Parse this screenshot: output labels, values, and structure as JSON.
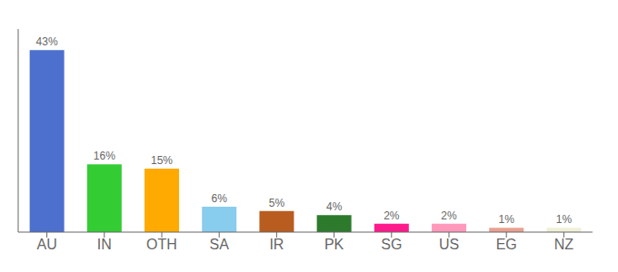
{
  "chart_data": {
    "type": "bar",
    "categories": [
      "AU",
      "IN",
      "OTH",
      "SA",
      "IR",
      "PK",
      "SG",
      "US",
      "EG",
      "NZ"
    ],
    "values": [
      43,
      16,
      15,
      6,
      5,
      4,
      2,
      2,
      1,
      1
    ],
    "value_labels": [
      "43%",
      "16%",
      "15%",
      "6%",
      "5%",
      "4%",
      "2%",
      "2%",
      "1%",
      "1%"
    ],
    "colors": [
      "#4d6fce",
      "#33cc33",
      "#ffaa00",
      "#88ccee",
      "#b85c20",
      "#2d7a2d",
      "#ff1a8c",
      "#ff99bb",
      "#e8a090",
      "#f0f0d8"
    ],
    "ylim": [
      0,
      48
    ],
    "data_labels": true,
    "tick_labels": "x",
    "grid": false
  }
}
